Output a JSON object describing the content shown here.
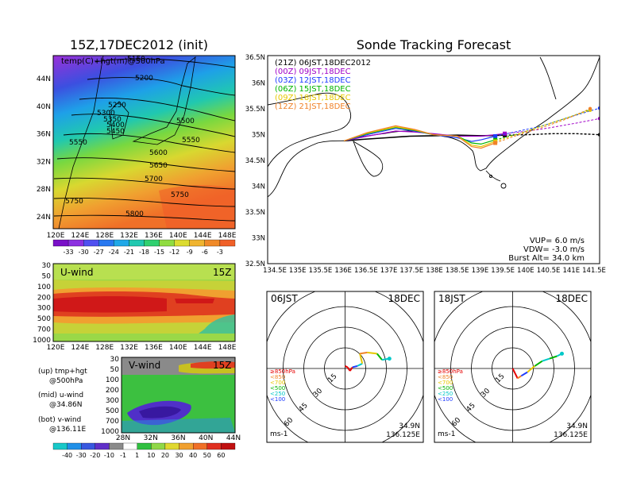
{
  "left_title": "15Z,17DEC2012 (init)",
  "right_title": "Sonde Tracking Forecast",
  "map500": {
    "overlay_label": "temp(C)+hgt(m)@500hPa",
    "lat_ticks": [
      "44N",
      "40N",
      "36N",
      "32N",
      "28N",
      "24N"
    ],
    "lon_ticks": [
      "120E",
      "124E",
      "128E",
      "132E",
      "136E",
      "140E",
      "144E",
      "148E"
    ],
    "contour_labels": [
      "5150",
      "5200",
      "5250",
      "5300",
      "5350",
      "5400",
      "5450",
      "5500",
      "5550",
      "5550",
      "5600",
      "5650",
      "5700",
      "5750",
      "5750",
      "5800"
    ],
    "colorbar": [
      "-33",
      "-30",
      "-27",
      "-24",
      "-21",
      "-18",
      "-15",
      "-12",
      "-9",
      "-6",
      "-3"
    ]
  },
  "uwind": {
    "title": "U-wind",
    "time": "15Z",
    "y_ticks": [
      "30",
      "50",
      "100",
      "200",
      "300",
      "500",
      "700",
      "1000"
    ],
    "x_ticks": [
      "120E",
      "124E",
      "128E",
      "132E",
      "136E",
      "140E",
      "144E",
      "148E"
    ]
  },
  "vwind": {
    "title": "V-wind",
    "time": "15Z",
    "y_ticks": [
      "30",
      "50",
      "100",
      "200",
      "300",
      "500",
      "700",
      "1000"
    ],
    "x_ticks": [
      "28N",
      "32N",
      "36N",
      "40N",
      "44N"
    ]
  },
  "legend_notes": [
    {
      "a": "(up) tmp+hgt",
      "b": "@500hPa"
    },
    {
      "a": "(mid) u-wind",
      "b": "@34.86N"
    },
    {
      "a": "(bot) v-wind",
      "b": "@136.11E"
    }
  ],
  "bottom_colorbar": [
    "-40",
    "-30",
    "-20",
    "-10",
    "-1",
    "1",
    "10",
    "20",
    "30",
    "40",
    "50",
    "60"
  ],
  "track": {
    "y_ticks": [
      "36.5N",
      "36N",
      "35.5N",
      "35N",
      "34.5N",
      "34N",
      "33.5N",
      "33N",
      "32.5N"
    ],
    "x_ticks": [
      "134.5E",
      "135E",
      "135.5E",
      "136E",
      "136.5E",
      "137E",
      "137.5E",
      "138E",
      "138.5E",
      "139E",
      "139.5E",
      "140E",
      "140.5E",
      "141E",
      "141.5E"
    ],
    "legend": [
      {
        "label": "(21Z) 06JST,18DEC2012",
        "color": "#000000"
      },
      {
        "label": "(00Z) 09JST,18DEC",
        "color": "#a000c8"
      },
      {
        "label": "(03Z) 12JST,18DEC",
        "color": "#1e3cff"
      },
      {
        "label": "(06Z) 15JST,18DEC",
        "color": "#00b400"
      },
      {
        "label": "(09Z) 18JST,18DEC",
        "color": "#e6c800"
      },
      {
        "label": "(12Z) 21JST,18DEC",
        "color": "#f08228"
      }
    ],
    "info": [
      "VUP= 6.0 m/s",
      "VDW= -3.0 m/s",
      "Burst Alt= 34.0 km"
    ]
  },
  "chart_data": [
    {
      "type": "line",
      "title": "Sonde Tracking Forecast",
      "xlim": [
        134.5,
        141.5
      ],
      "ylim": [
        32.5,
        36.5
      ],
      "series": [
        {
          "name": "(21Z) 06JST,18DEC2012",
          "color": "#000000",
          "x": [
            136.11,
            136.5,
            137.0,
            137.5,
            138.0,
            138.5,
            139.0,
            139.5,
            140.0,
            140.5,
            141.0,
            141.5
          ],
          "y": [
            34.86,
            34.89,
            34.92,
            34.95,
            34.96,
            34.97,
            34.96,
            34.97,
            34.98,
            35.0,
            35.0,
            34.98
          ]
        },
        {
          "name": "(00Z) 09JST,18DEC",
          "color": "#a000c8",
          "x": [
            136.11,
            136.6,
            137.2,
            137.6,
            138.0,
            138.5,
            139.0,
            139.5,
            140.0,
            140.5,
            141.0,
            141.5
          ],
          "y": [
            34.86,
            34.95,
            35.05,
            35.03,
            35.0,
            34.95,
            34.95,
            35.0,
            35.05,
            35.12,
            35.2,
            35.29
          ]
        },
        {
          "name": "(03Z) 12JST,18DEC",
          "color": "#1e3cff",
          "x": [
            136.11,
            136.6,
            137.2,
            137.6,
            138.0,
            138.5,
            138.8,
            139.0,
            139.3,
            139.8,
            140.3,
            140.8,
            141.5
          ],
          "y": [
            34.86,
            34.98,
            35.1,
            35.05,
            34.98,
            34.92,
            34.85,
            34.88,
            34.95,
            35.05,
            35.15,
            35.3,
            35.49
          ]
        },
        {
          "name": "(06Z) 15JST,18DEC",
          "color": "#00b400",
          "x": [
            136.11,
            136.6,
            137.2,
            137.6,
            138.0,
            138.5,
            138.8,
            139.0,
            139.3,
            139.8,
            140.3,
            140.8,
            141.3
          ],
          "y": [
            34.86,
            35.0,
            35.12,
            35.06,
            34.98,
            34.95,
            34.82,
            34.8,
            34.88,
            35.0,
            35.15,
            35.3,
            35.46
          ]
        },
        {
          "name": "(09Z) 18JST,18DEC",
          "color": "#e6c800",
          "x": [
            136.11,
            136.6,
            137.2,
            137.6,
            138.0,
            138.5,
            138.8,
            139.0,
            139.3,
            139.8,
            140.3,
            140.8,
            141.3
          ],
          "y": [
            34.86,
            35.01,
            35.13,
            35.07,
            34.98,
            34.95,
            34.78,
            34.75,
            34.85,
            35.0,
            35.15,
            35.3,
            35.45
          ]
        },
        {
          "name": "(12Z) 21JST,18DEC",
          "color": "#f08228",
          "x": [
            136.11,
            136.6,
            137.2,
            137.6,
            138.0,
            138.5,
            138.8,
            139.0,
            139.3,
            139.8,
            140.3,
            140.8,
            141.3
          ],
          "y": [
            34.86,
            35.02,
            35.15,
            35.08,
            34.98,
            34.95,
            34.75,
            34.72,
            34.82,
            34.98,
            35.12,
            35.28,
            35.48
          ]
        }
      ]
    },
    {
      "type": "polar",
      "title": "06JST 18DEC",
      "location": [
        "34.9N",
        "136.125E"
      ],
      "unit_label": "ms-1",
      "ring_labels": [
        "15",
        "30",
        "45",
        "60"
      ],
      "pressure_legend": [
        {
          "label": "≥850hPa",
          "color": "#e60000"
        },
        {
          "label": "<850",
          "color": "#f08228"
        },
        {
          "label": "<700",
          "color": "#e6c800"
        },
        {
          "label": "<500",
          "color": "#00b400"
        },
        {
          "label": "<250",
          "color": "#00c8c8"
        },
        {
          "label": "<100",
          "color": "#1e3cff"
        }
      ],
      "hodograph": [
        {
          "u": 0,
          "v": 2,
          "color": "#e60000"
        },
        {
          "u": 2,
          "v": 1,
          "color": "#e60000"
        },
        {
          "u": 4,
          "v": -2,
          "color": "#e60000"
        },
        {
          "u": 6,
          "v": 1,
          "color": "#e60000"
        },
        {
          "u": 10,
          "v": 2,
          "color": "#1e3cff"
        },
        {
          "u": 14,
          "v": 4,
          "color": "#00c8c8"
        },
        {
          "u": 12,
          "v": 12,
          "color": "#e6c800"
        },
        {
          "u": 18,
          "v": 13,
          "color": "#f08228"
        },
        {
          "u": 26,
          "v": 12,
          "color": "#e6c800"
        },
        {
          "u": 30,
          "v": 7,
          "color": "#00b400"
        },
        {
          "u": 36,
          "v": 8,
          "color": "#00c8c8"
        }
      ]
    },
    {
      "type": "polar",
      "title": "18JST 18DEC",
      "location": [
        "34.9N",
        "136.125E"
      ],
      "unit_label": "ms-1",
      "ring_labels": [
        "15",
        "30",
        "45",
        "60"
      ],
      "pressure_legend": [
        {
          "label": "≥850hPa",
          "color": "#e60000"
        },
        {
          "label": "<850",
          "color": "#f08228"
        },
        {
          "label": "<700",
          "color": "#e6c800"
        },
        {
          "label": "<500",
          "color": "#00b400"
        },
        {
          "label": "<250",
          "color": "#00c8c8"
        },
        {
          "label": "<100",
          "color": "#1e3cff"
        }
      ],
      "hodograph": [
        {
          "u": 0,
          "v": 0,
          "color": "#e60000"
        },
        {
          "u": 2,
          "v": -4,
          "color": "#e60000"
        },
        {
          "u": 4,
          "v": -8,
          "color": "#e60000"
        },
        {
          "u": 7,
          "v": -6,
          "color": "#f08228"
        },
        {
          "u": 12,
          "v": -3,
          "color": "#1e3cff"
        },
        {
          "u": 18,
          "v": 2,
          "color": "#e6c800"
        },
        {
          "u": 24,
          "v": 6,
          "color": "#00b400"
        },
        {
          "u": 30,
          "v": 8,
          "color": "#00c8c8"
        },
        {
          "u": 36,
          "v": 10,
          "color": "#00b400"
        },
        {
          "u": 40,
          "v": 12,
          "color": "#00c8c8"
        }
      ]
    }
  ]
}
